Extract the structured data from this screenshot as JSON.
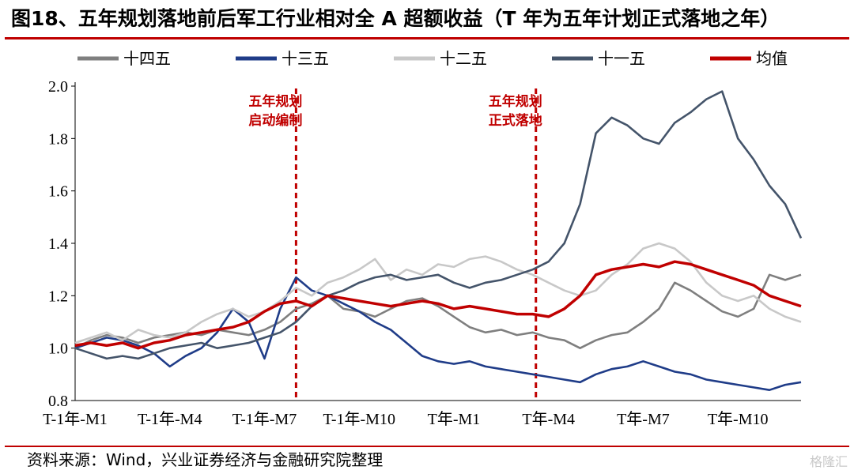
{
  "title": "图18、五年规划落地前后军工行业相对全 A 超额收益（T 年为五年计划正式落地之年）",
  "source": "资料来源：Wind，兴业证券经济与金融研究院整理",
  "watermark": "格隆汇",
  "chart_data": {
    "type": "line",
    "title": "图18、五年规划落地前后军工行业相对全 A 超额收益（T 年为五年计划正式落地之年）",
    "xlabel": "",
    "ylabel": "",
    "ylim": [
      0.8,
      2.0
    ],
    "yticks": [
      "2.0",
      "1.8",
      "1.6",
      "1.4",
      "1.2",
      "1.0",
      "0.8"
    ],
    "xlim": [
      0,
      23
    ],
    "x_tick_labels": [
      {
        "x": 0,
        "label": "T-1年-M1"
      },
      {
        "x": 3,
        "label": "T-1年-M4"
      },
      {
        "x": 6,
        "label": "T-1年-M7"
      },
      {
        "x": 9,
        "label": "T-1年-M10"
      },
      {
        "x": 12,
        "label": "T年-M1"
      },
      {
        "x": 15,
        "label": "T年-M4"
      },
      {
        "x": 18,
        "label": "T年-M7"
      },
      {
        "x": 21,
        "label": "T年-M10"
      }
    ],
    "grid": false,
    "legend_position": "top",
    "annotations": [
      {
        "x": 7,
        "lines": [
          "五年规划",
          "启动编制"
        ],
        "color": "#c00000"
      },
      {
        "x": 14.6,
        "lines": [
          "五年规划",
          "正式落地"
        ],
        "color": "#c00000"
      }
    ],
    "series": [
      {
        "name": "十四五",
        "color": "#7f7f7f",
        "x": [
          0,
          0.5,
          1,
          1.5,
          2,
          2.5,
          3,
          3.5,
          4,
          4.5,
          5,
          5.5,
          6,
          6.5,
          7,
          7.5,
          8,
          8.5,
          9,
          9.5,
          10,
          10.5,
          11,
          11.5,
          12,
          12.5,
          13,
          13.5,
          14,
          14.5,
          15,
          15.5,
          16,
          16.5,
          17,
          17.5,
          18,
          18.5,
          19,
          19.5,
          20,
          20.5,
          21,
          21.5,
          22,
          22.5,
          23
        ],
        "values": [
          1.0,
          1.03,
          1.05,
          1.04,
          1.02,
          1.04,
          1.05,
          1.06,
          1.05,
          1.07,
          1.06,
          1.05,
          1.07,
          1.1,
          1.15,
          1.17,
          1.2,
          1.15,
          1.14,
          1.12,
          1.15,
          1.18,
          1.19,
          1.16,
          1.12,
          1.08,
          1.06,
          1.07,
          1.05,
          1.06,
          1.04,
          1.03,
          1.0,
          1.03,
          1.05,
          1.06,
          1.1,
          1.15,
          1.25,
          1.22,
          1.18,
          1.14,
          1.12,
          1.15,
          1.28,
          1.26,
          1.28
        ]
      },
      {
        "name": "十三五",
        "color": "#1f3c88",
        "x": [
          0,
          0.5,
          1,
          1.5,
          2,
          2.5,
          3,
          3.5,
          4,
          4.5,
          5,
          5.5,
          6,
          6.5,
          7,
          7.5,
          8,
          8.5,
          9,
          9.5,
          10,
          10.5,
          11,
          11.5,
          12,
          12.5,
          13,
          13.5,
          14,
          14.5,
          15,
          15.5,
          16,
          16.5,
          17,
          17.5,
          18,
          18.5,
          19,
          19.5,
          20,
          20.5,
          21,
          21.5,
          22,
          22.5,
          23
        ],
        "values": [
          1.0,
          1.02,
          1.04,
          1.03,
          1.01,
          0.98,
          0.93,
          0.97,
          1.0,
          1.06,
          1.15,
          1.1,
          0.96,
          1.15,
          1.27,
          1.22,
          1.2,
          1.17,
          1.14,
          1.1,
          1.07,
          1.02,
          0.97,
          0.95,
          0.94,
          0.95,
          0.93,
          0.92,
          0.91,
          0.9,
          0.89,
          0.88,
          0.87,
          0.9,
          0.92,
          0.93,
          0.95,
          0.93,
          0.91,
          0.9,
          0.88,
          0.87,
          0.86,
          0.85,
          0.84,
          0.86,
          0.87
        ]
      },
      {
        "name": "十二五",
        "color": "#c8c8c8",
        "x": [
          0,
          0.5,
          1,
          1.5,
          2,
          2.5,
          3,
          3.5,
          4,
          4.5,
          5,
          5.5,
          6,
          6.5,
          7,
          7.5,
          8,
          8.5,
          9,
          9.5,
          10,
          10.5,
          11,
          11.5,
          12,
          12.5,
          13,
          13.5,
          14,
          14.5,
          15,
          15.5,
          16,
          16.5,
          17,
          17.5,
          18,
          18.5,
          19,
          19.5,
          20,
          20.5,
          21,
          21.5,
          22,
          22.5,
          23
        ],
        "values": [
          1.02,
          1.04,
          1.06,
          1.03,
          1.07,
          1.05,
          1.04,
          1.06,
          1.1,
          1.13,
          1.15,
          1.12,
          1.14,
          1.18,
          1.23,
          1.2,
          1.25,
          1.27,
          1.3,
          1.34,
          1.26,
          1.3,
          1.28,
          1.32,
          1.31,
          1.34,
          1.35,
          1.33,
          1.3,
          1.28,
          1.25,
          1.22,
          1.2,
          1.22,
          1.28,
          1.32,
          1.38,
          1.4,
          1.38,
          1.33,
          1.25,
          1.2,
          1.18,
          1.2,
          1.15,
          1.12,
          1.1
        ]
      },
      {
        "name": "十一五",
        "color": "#44546a",
        "x": [
          0,
          0.5,
          1,
          1.5,
          2,
          2.5,
          3,
          3.5,
          4,
          4.5,
          5,
          5.5,
          6,
          6.5,
          7,
          7.5,
          8,
          8.5,
          9,
          9.5,
          10,
          10.5,
          11,
          11.5,
          12,
          12.5,
          13,
          13.5,
          14,
          14.5,
          15,
          15.5,
          16,
          16.5,
          17,
          17.5,
          18,
          18.5,
          19,
          19.5,
          20,
          20.5,
          21,
          21.5,
          22,
          22.5,
          23
        ],
        "values": [
          1.0,
          0.98,
          0.96,
          0.97,
          0.96,
          0.98,
          1.0,
          1.01,
          1.02,
          1.0,
          1.01,
          1.02,
          1.04,
          1.06,
          1.1,
          1.16,
          1.2,
          1.22,
          1.25,
          1.27,
          1.28,
          1.26,
          1.27,
          1.28,
          1.25,
          1.23,
          1.25,
          1.26,
          1.28,
          1.3,
          1.33,
          1.4,
          1.55,
          1.82,
          1.88,
          1.85,
          1.8,
          1.78,
          1.86,
          1.9,
          1.95,
          1.98,
          1.8,
          1.72,
          1.62,
          1.55,
          1.42
        ]
      },
      {
        "name": "均值",
        "color": "#c00000",
        "x": [
          0,
          0.5,
          1,
          1.5,
          2,
          2.5,
          3,
          3.5,
          4,
          4.5,
          5,
          5.5,
          6,
          6.5,
          7,
          7.5,
          8,
          8.5,
          9,
          9.5,
          10,
          10.5,
          11,
          11.5,
          12,
          12.5,
          13,
          13.5,
          14,
          14.5,
          15,
          15.5,
          16,
          16.5,
          17,
          17.5,
          18,
          18.5,
          19,
          19.5,
          20,
          20.5,
          21,
          21.5,
          22,
          22.5,
          23
        ],
        "values": [
          1.01,
          1.02,
          1.01,
          1.02,
          1.0,
          1.02,
          1.03,
          1.05,
          1.06,
          1.07,
          1.08,
          1.1,
          1.14,
          1.17,
          1.18,
          1.16,
          1.2,
          1.19,
          1.18,
          1.17,
          1.16,
          1.17,
          1.18,
          1.17,
          1.15,
          1.16,
          1.15,
          1.14,
          1.13,
          1.13,
          1.12,
          1.15,
          1.2,
          1.28,
          1.3,
          1.31,
          1.32,
          1.31,
          1.33,
          1.32,
          1.3,
          1.28,
          1.26,
          1.24,
          1.2,
          1.18,
          1.16
        ]
      }
    ]
  }
}
